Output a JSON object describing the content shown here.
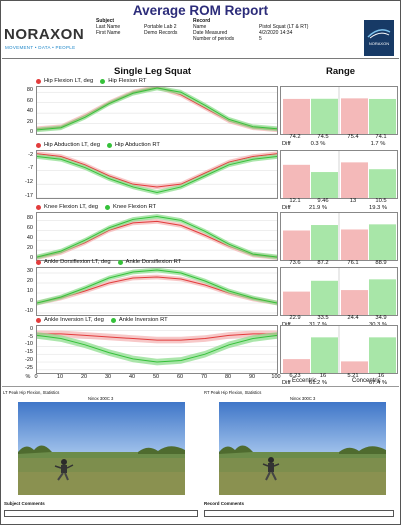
{
  "report": {
    "title": "Average ROM Report",
    "logo_text": "NORAXON",
    "logo_tagline": "MOVEMENT • DATA • PEOPLE",
    "subject": {
      "heading": "Subject",
      "last_name_label": "Last Name",
      "last_name": "Portable Lab 2",
      "first_name_label": "First Name",
      "first_name": "Demo Records"
    },
    "record": {
      "heading": "Record",
      "name_label": "Name",
      "name": "Pistol Squat (LT & RT)",
      "date_label": "Date Measured",
      "date": "4/2/2020 14:34",
      "periods_label": "Number of periods",
      "periods": "5"
    },
    "badge_text": "NORAXON"
  },
  "sections": {
    "left_title": "Single Leg Squat",
    "right_title": "Range",
    "diff_label": "Diff"
  },
  "colors": {
    "left": "#e23c3c",
    "right": "#35c13a",
    "left_band": "#f4b5b5",
    "right_band": "#8fdd8f",
    "left_bar": "#f4b9b9",
    "right_bar": "#a8e6a8"
  },
  "chart_data": [
    {
      "type": "area",
      "series": [
        {
          "name": "Hip Flexion LT, deg",
          "x": [
            0,
            10,
            20,
            30,
            40,
            50,
            60,
            70,
            80,
            90,
            100
          ],
          "y": [
            10,
            14,
            35,
            60,
            80,
            90,
            75,
            50,
            25,
            12,
            8
          ]
        },
        {
          "name": "Hip Flexion RT",
          "x": [
            0,
            10,
            20,
            30,
            40,
            50,
            60,
            70,
            80,
            90,
            100
          ],
          "y": [
            8,
            12,
            32,
            58,
            78,
            88,
            80,
            55,
            28,
            14,
            10
          ]
        }
      ],
      "yticks": [
        "80",
        "60",
        "40",
        "20",
        "0"
      ],
      "ylim": [
        0,
        90
      ],
      "range": {
        "lt_ecc": "74.2",
        "rt_ecc": "74.5",
        "diff_ecc": "0.3 %",
        "lt_con": "75.4",
        "rt_con": "74.1",
        "diff_con": "1.7 %",
        "bars": [
          74.2,
          74.5,
          75.4,
          74.1
        ]
      }
    },
    {
      "type": "area",
      "series": [
        {
          "name": "Hip Abduction LT, deg",
          "x": [
            0,
            10,
            20,
            30,
            40,
            50,
            60,
            70,
            80,
            90,
            100
          ],
          "y": [
            -1,
            -2,
            -5,
            -9,
            -12,
            -13,
            -12,
            -8,
            -4,
            -2,
            -1
          ]
        },
        {
          "name": "Hip Abduction RT",
          "x": [
            0,
            10,
            20,
            30,
            40,
            50,
            60,
            70,
            80,
            90,
            100
          ],
          "y": [
            -2,
            -3,
            -6,
            -10,
            -13,
            -15,
            -13,
            -9,
            -5,
            -3,
            -2
          ]
        }
      ],
      "yticks": [
        "-2",
        "-7",
        "-12",
        "-17"
      ],
      "ylim": [
        -17,
        0
      ],
      "range": {
        "lt_ecc": "12.1",
        "rt_ecc": "9.46",
        "diff_ecc": "21.9 %",
        "lt_con": "13",
        "rt_con": "10.5",
        "diff_con": "19.3 %",
        "bars": [
          12.1,
          9.46,
          13,
          10.5
        ]
      }
    },
    {
      "type": "area",
      "series": [
        {
          "name": "Knee Flexion LT, deg",
          "x": [
            0,
            10,
            20,
            30,
            40,
            50,
            60,
            70,
            80,
            90,
            100
          ],
          "y": [
            5,
            15,
            35,
            60,
            75,
            78,
            70,
            50,
            28,
            10,
            5
          ]
        },
        {
          "name": "Knee Flexion RT",
          "x": [
            0,
            10,
            20,
            30,
            40,
            50,
            60,
            70,
            80,
            90,
            100
          ],
          "y": [
            6,
            18,
            40,
            65,
            82,
            88,
            80,
            58,
            32,
            12,
            6
          ]
        }
      ],
      "yticks": [
        "80",
        "60",
        "40",
        "20",
        "0"
      ],
      "ylim": [
        0,
        95
      ],
      "range": {
        "lt_ecc": "73.6",
        "rt_ecc": "87.2",
        "diff_ecc": "15.6 %",
        "lt_con": "76.1",
        "rt_con": "88.9",
        "diff_con": "14.3 %",
        "bars": [
          73.6,
          87.2,
          76.1,
          88.9
        ]
      }
    },
    {
      "type": "area",
      "series": [
        {
          "name": "Ankle Dorsiflexion LT, deg",
          "x": [
            0,
            10,
            20,
            30,
            40,
            50,
            60,
            70,
            80,
            90,
            100
          ],
          "y": [
            0,
            5,
            12,
            20,
            25,
            26,
            24,
            18,
            10,
            4,
            0
          ]
        },
        {
          "name": "Ankle Dorsiflexion RT",
          "x": [
            0,
            10,
            20,
            30,
            40,
            50,
            60,
            70,
            80,
            90,
            100
          ],
          "y": [
            0,
            6,
            15,
            25,
            31,
            33,
            30,
            22,
            12,
            5,
            0
          ]
        }
      ],
      "yticks": [
        "30",
        "20",
        "10",
        "0",
        "-10"
      ],
      "ylim": [
        -12,
        35
      ],
      "range": {
        "lt_ecc": "22.9",
        "rt_ecc": "33.5",
        "diff_ecc": "31.7 %",
        "lt_con": "24.4",
        "rt_con": "34.9",
        "diff_con": "30.3 %",
        "bars": [
          22.9,
          33.5,
          24.4,
          34.9
        ]
      }
    },
    {
      "type": "area",
      "series": [
        {
          "name": "Ankle Inversion LT, deg",
          "x": [
            0,
            10,
            20,
            30,
            40,
            50,
            60,
            70,
            80,
            90,
            100
          ],
          "y": [
            -2,
            -2,
            -3,
            -4,
            -5,
            -6,
            -6,
            -5,
            -3,
            -2,
            -2
          ]
        },
        {
          "name": "Ankle Inversion RT",
          "x": [
            0,
            10,
            20,
            30,
            40,
            50,
            60,
            70,
            80,
            90,
            100
          ],
          "y": [
            -3,
            -5,
            -9,
            -14,
            -18,
            -20,
            -19,
            -15,
            -9,
            -5,
            -3
          ]
        }
      ],
      "yticks": [
        "0",
        "-5",
        "-10",
        "-15",
        "-20",
        "-25"
      ],
      "ylim": [
        -27,
        3
      ],
      "range": {
        "lt_ecc": "6.23",
        "rt_ecc": "16",
        "diff_ecc": "61.2 %",
        "lt_con": "5.21",
        "rt_con": "16",
        "diff_con": "67.4 %",
        "bars": [
          6.23,
          16,
          5.21,
          16
        ]
      }
    }
  ],
  "xticks": [
    "%",
    "0",
    "10",
    "20",
    "30",
    "40",
    "50",
    "60",
    "70",
    "80",
    "90",
    "100"
  ],
  "range_footer": {
    "eccentric": "Eccentric",
    "concentric": "Concentric"
  },
  "photos": {
    "left_caption": "LT Peak Hip Flexion, Statistics",
    "left_camera": "Ninox 300C 3",
    "right_caption": "RT Peak Hip Flexion, Statistics",
    "right_camera": "Ninox 300C 3"
  },
  "comments": {
    "subject_label": "Subject Comments",
    "record_label": "Record Comments"
  }
}
